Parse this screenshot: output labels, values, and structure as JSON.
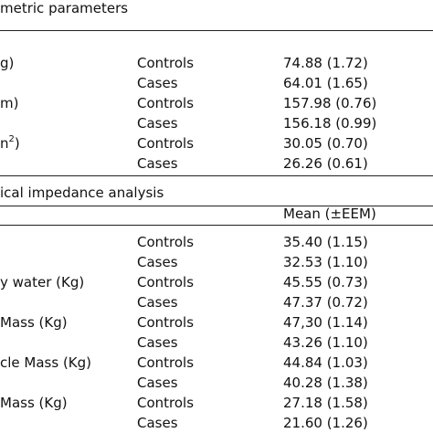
{
  "section1": {
    "title": "metric parameters",
    "rows": [
      {
        "label": "g)",
        "group": "Controls",
        "value": "74.88 (1.72)"
      },
      {
        "label": "",
        "group": "Cases",
        "value": "64.01 (1.65)"
      },
      {
        "label": "m)",
        "group": "Controls",
        "value": "157.98 (0.76)"
      },
      {
        "label": "",
        "group": "Cases",
        "value": "156.18 (0.99)"
      },
      {
        "label": "n",
        "sup": "2",
        "label_suffix": ")",
        "group": "Controls",
        "value": "30.05 (0.70)"
      },
      {
        "label": "",
        "group": "Cases",
        "value": "26.26 (0.61)"
      }
    ]
  },
  "section2": {
    "title": "ical impedance analysis",
    "column_header": "Mean (±EEM)",
    "rows": [
      {
        "label": "",
        "group": "Controls",
        "value": "35.40 (1.15)"
      },
      {
        "label": "",
        "group": "Cases",
        "value": "32.53 (1.10)"
      },
      {
        "label": "y water (Kg)",
        "group": "Controls",
        "value": "45.55 (0.73)"
      },
      {
        "label": "",
        "group": "Cases",
        "value": "47.37 (0.72)"
      },
      {
        "label": "Mass (Kg)",
        "group": "Controls",
        "value": "47,30 (1.14)"
      },
      {
        "label": "",
        "group": "Cases",
        "value": "43.26 (1.10)"
      },
      {
        "label": "cle Mass (Kg)",
        "group": "Controls",
        "value": "44.84 (1.03)"
      },
      {
        "label": "",
        "group": "Cases",
        "value": "40.28 (1.38)"
      },
      {
        "label": "Mass (Kg)",
        "group": "Controls",
        "value": "27.18 (1.58)"
      },
      {
        "label": "",
        "group": "Cases",
        "value": "21.60 (1.26)"
      }
    ]
  }
}
